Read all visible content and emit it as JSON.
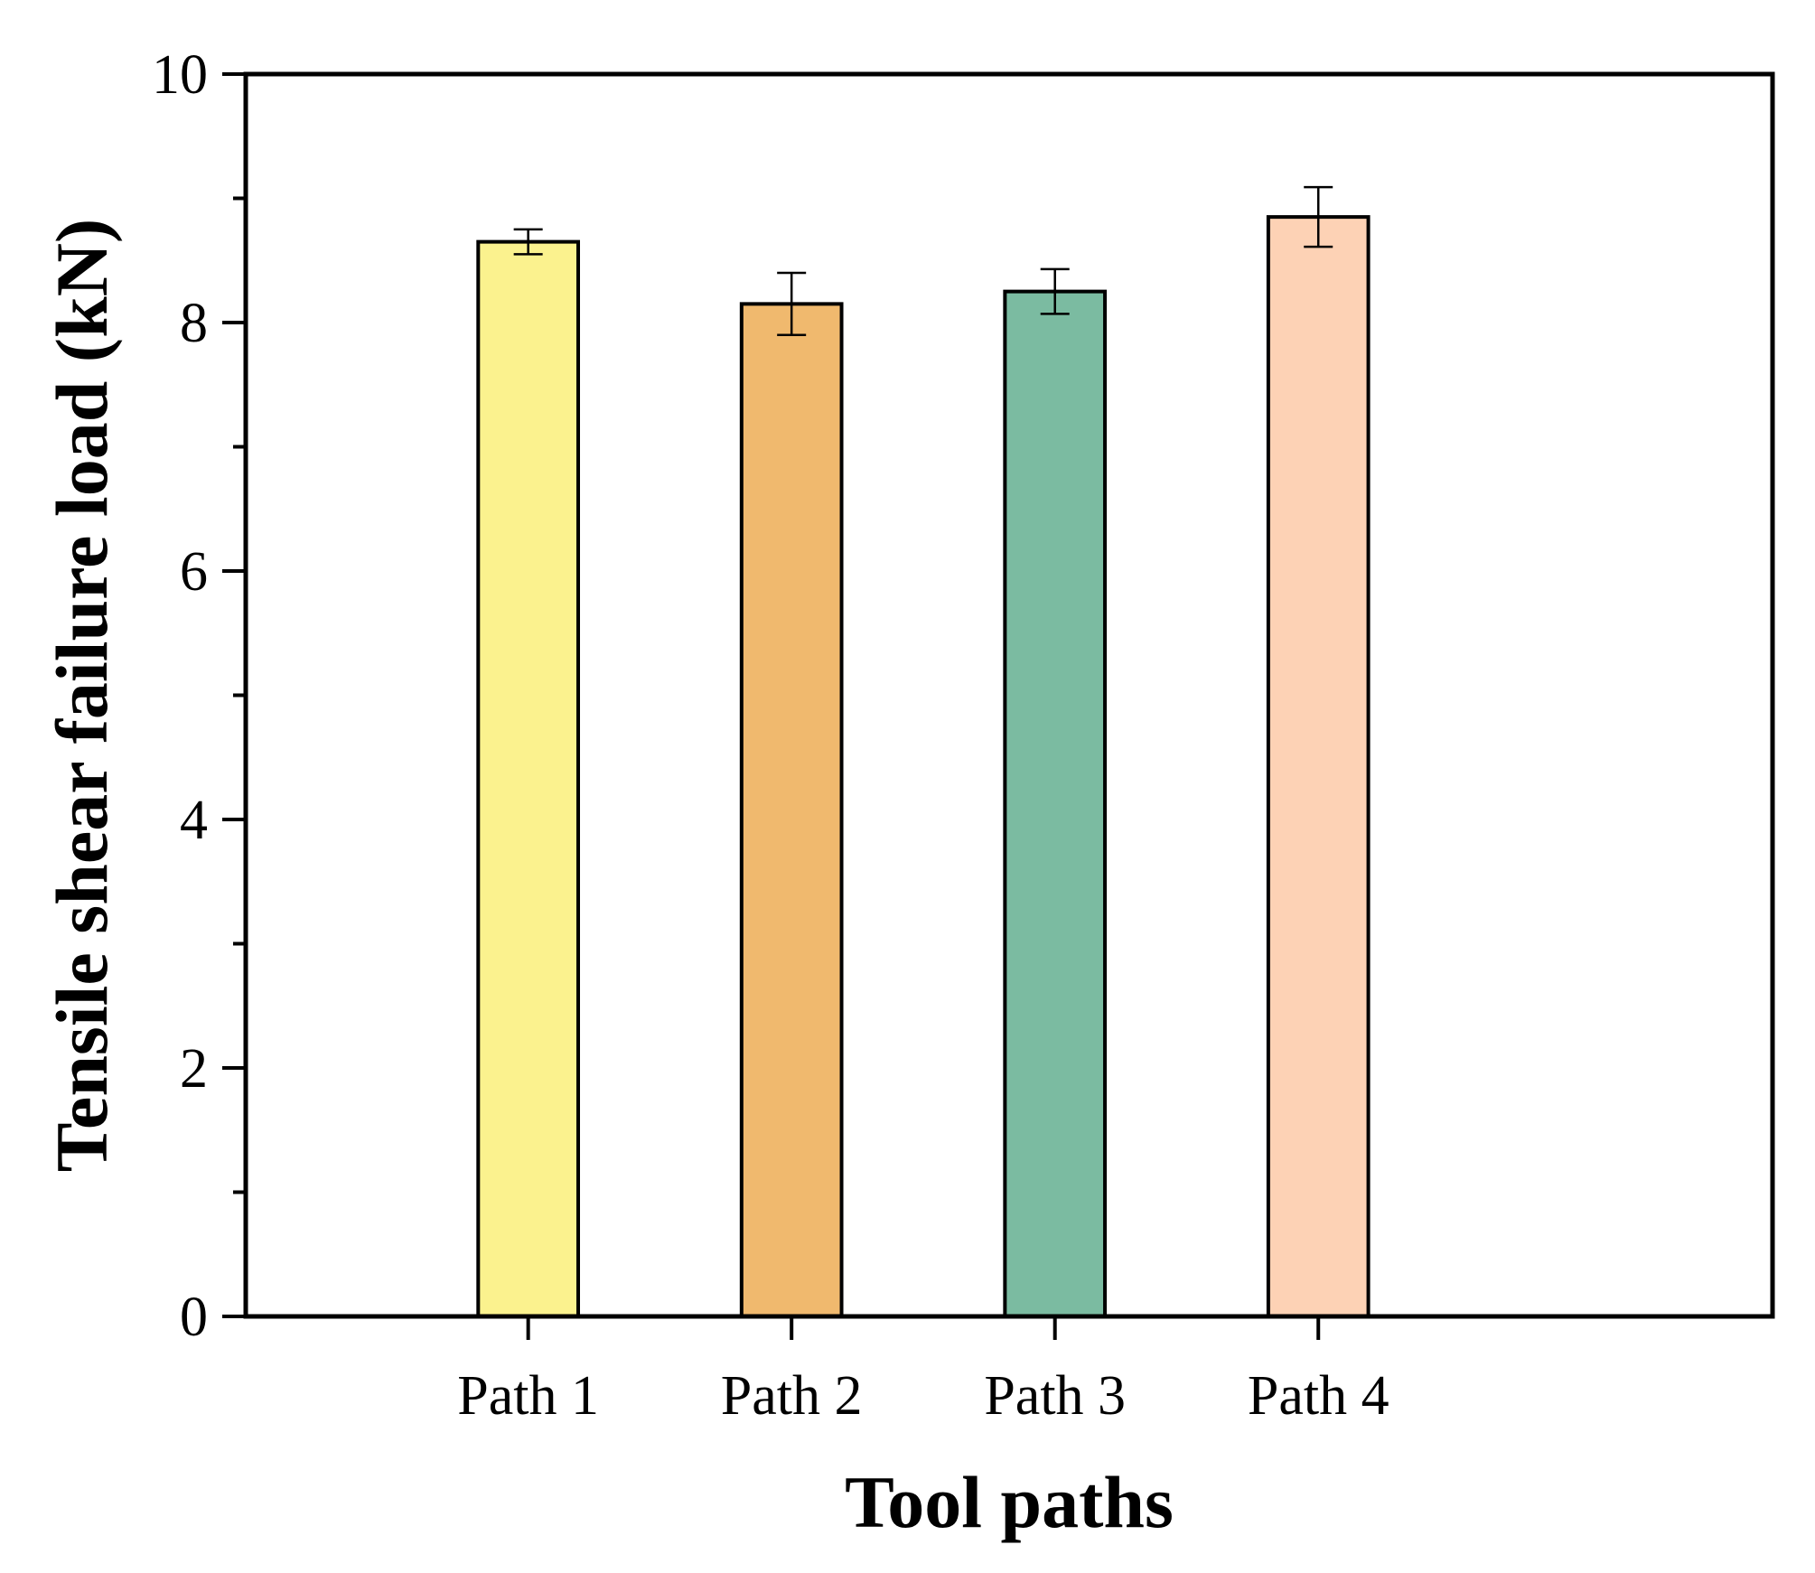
{
  "chart_data": {
    "type": "bar",
    "title": "",
    "xlabel": "Tool paths",
    "ylabel": "Tensile shear failure load (kN)",
    "categories": [
      "Path 1",
      "Path 2",
      "Path 3",
      "Path 4"
    ],
    "values": [
      8.65,
      8.15,
      8.25,
      8.85
    ],
    "errors": [
      0.1,
      0.25,
      0.18,
      0.24
    ],
    "colors": [
      "#FBF28E",
      "#F0B96E",
      "#7BBBA1",
      "#FDD2B5"
    ],
    "ylim": [
      0,
      10
    ],
    "yticks": [
      0,
      2,
      4,
      6,
      8,
      10
    ],
    "ytick_labels": [
      "0",
      "2",
      "4",
      "6",
      "8",
      "10"
    ],
    "minor_yticks": [
      1,
      3,
      5,
      7,
      9
    ],
    "grid": false,
    "legend": "none"
  }
}
